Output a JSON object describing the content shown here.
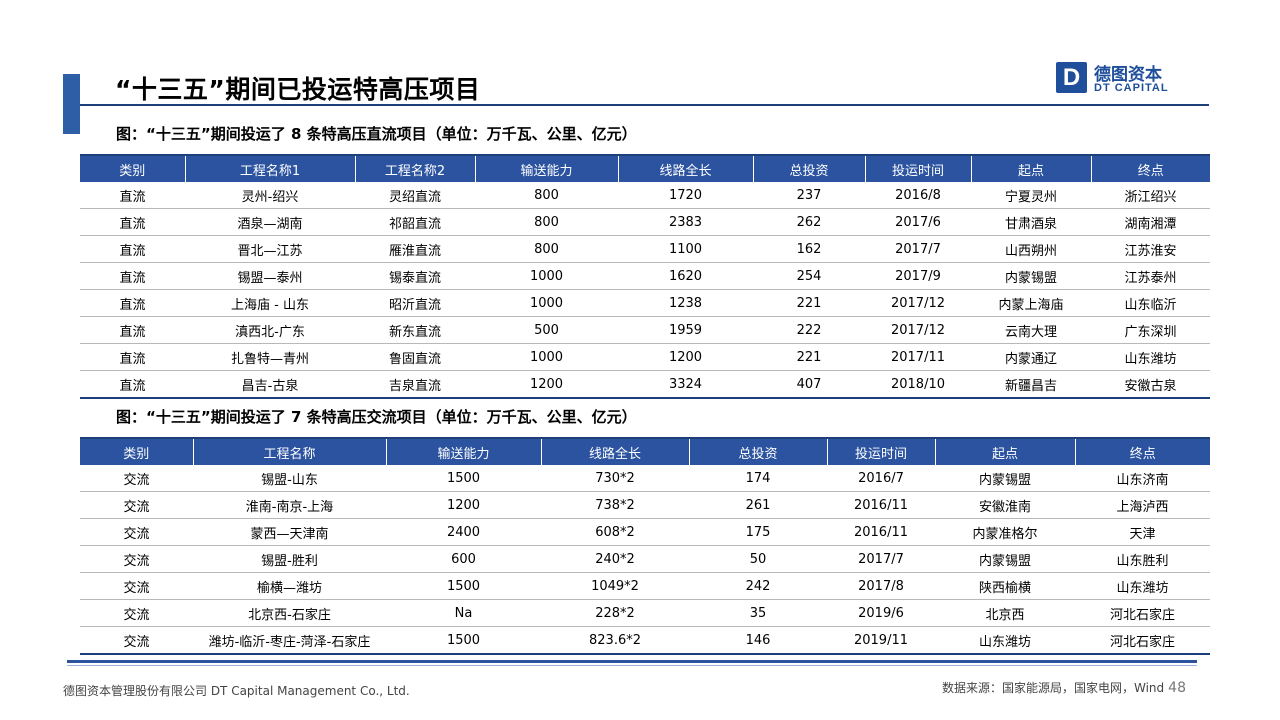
{
  "header": {
    "title": "“十三五”期间已投运特高压项目",
    "logo_mark": "D",
    "logo_cn": "德图资本",
    "logo_en": "DT CAPITAL"
  },
  "table1": {
    "caption": "图：“十三五”期间投运了 8 条特高压直流项目（单位：万千瓦、公里、亿元）",
    "headers": [
      "类别",
      "工程名称1",
      "工程名称2",
      "输送能力",
      "线路全长",
      "总投资",
      "投运时间",
      "起点",
      "终点"
    ],
    "rows": [
      [
        "直流",
        "灵州-绍兴",
        "灵绍直流",
        "800",
        "1720",
        "237",
        "2016/8",
        "宁夏灵州",
        "浙江绍兴"
      ],
      [
        "直流",
        "酒泉—湖南",
        "祁韶直流",
        "800",
        "2383",
        "262",
        "2017/6",
        "甘肃酒泉",
        "湖南湘潭"
      ],
      [
        "直流",
        "晋北—江苏",
        "雁淮直流",
        "800",
        "1100",
        "162",
        "2017/7",
        "山西朔州",
        "江苏淮安"
      ],
      [
        "直流",
        "锡盟—泰州",
        "锡泰直流",
        "1000",
        "1620",
        "254",
        "2017/9",
        "内蒙锡盟",
        "江苏泰州"
      ],
      [
        "直流",
        "上海庙 - 山东",
        "昭沂直流",
        "1000",
        "1238",
        "221",
        "2017/12",
        "内蒙上海庙",
        "山东临沂"
      ],
      [
        "直流",
        "滇西北-广东",
        "新东直流",
        "500",
        "1959",
        "222",
        "2017/12",
        "云南大理",
        "广东深圳"
      ],
      [
        "直流",
        "扎鲁特—青州",
        "鲁固直流",
        "1000",
        "1200",
        "221",
        "2017/11",
        "内蒙通辽",
        "山东潍坊"
      ],
      [
        "直流",
        "昌吉-古泉",
        "吉泉直流",
        "1200",
        "3324",
        "407",
        "2018/10",
        "新疆昌吉",
        "安徽古泉"
      ]
    ]
  },
  "table2": {
    "caption": "图：“十三五”期间投运了 7 条特高压交流项目（单位：万千瓦、公里、亿元）",
    "headers": [
      "类别",
      "工程名称",
      "输送能力",
      "线路全长",
      "总投资",
      "投运时间",
      "起点",
      "终点"
    ],
    "rows": [
      [
        "交流",
        "锡盟-山东",
        "1500",
        "730*2",
        "174",
        "2016/7",
        "内蒙锡盟",
        "山东济南"
      ],
      [
        "交流",
        "淮南-南京-上海",
        "1200",
        "738*2",
        "261",
        "2016/11",
        "安徽淮南",
        "上海泸西"
      ],
      [
        "交流",
        "蒙西—天津南",
        "2400",
        "608*2",
        "175",
        "2016/11",
        "内蒙准格尔",
        "天津"
      ],
      [
        "交流",
        "锡盟-胜利",
        "600",
        "240*2",
        "50",
        "2017/7",
        "内蒙锡盟",
        "山东胜利"
      ],
      [
        "交流",
        "榆横—潍坊",
        "1500",
        "1049*2",
        "242",
        "2017/8",
        "陕西榆横",
        "山东潍坊"
      ],
      [
        "交流",
        "北京西-石家庄",
        "Na",
        "228*2",
        "35",
        "2019/6",
        "北京西",
        "河北石家庄"
      ],
      [
        "交流",
        "潍坊-临沂-枣庄-菏泽-石家庄",
        "1500",
        "823.6*2",
        "146",
        "2019/11",
        "山东潍坊",
        "河北石家庄"
      ]
    ]
  },
  "footer": {
    "company": "德图资本管理股份有限公司  DT Capital Management  Co., Ltd.",
    "source": "数据来源：国家能源局，国家电网，Wind",
    "page_number": "48"
  }
}
